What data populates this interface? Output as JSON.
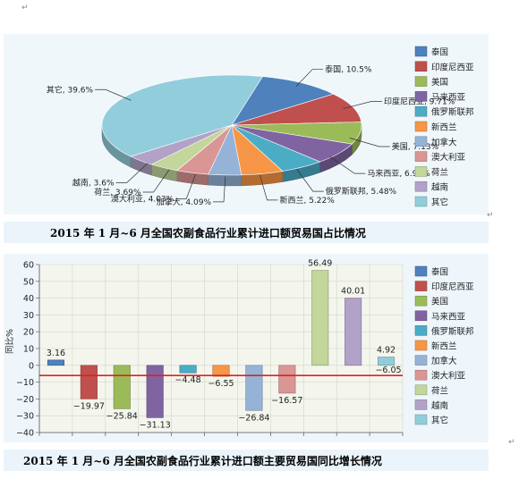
{
  "chart_data": [
    {
      "type": "pie",
      "title": "2015 年 1 月~6 月全国农副食品行业累计进口额贸易国占比情况",
      "legend_position": "right",
      "slices": [
        {
          "name": "泰国",
          "value": 10.5,
          "label": "泰国, 10.5%",
          "color": "#4f81bd"
        },
        {
          "name": "印度尼西亚",
          "value": 9.71,
          "label": "印度尼西亚, 9.71%",
          "color": "#c0504d"
        },
        {
          "name": "美国",
          "value": 7.13,
          "label": "美国, 7.13%",
          "color": "#9bbb59"
        },
        {
          "name": "马来西亚",
          "value": 6.95,
          "label": "马来西亚, 6.95%",
          "color": "#8064a2"
        },
        {
          "name": "俄罗斯联邦",
          "value": 5.48,
          "label": "俄罗斯联邦, 5.48%",
          "color": "#4bacc6"
        },
        {
          "name": "新西兰",
          "value": 5.22,
          "label": "新西兰, 5.22%",
          "color": "#f79646"
        },
        {
          "name": "加拿大",
          "value": 4.09,
          "label": "加拿大, 4.09%",
          "color": "#95b3d7"
        },
        {
          "name": "澳大利亚",
          "value": 4.03,
          "label": "澳大利亚, 4.03%",
          "color": "#d99694"
        },
        {
          "name": "荷兰",
          "value": 3.69,
          "label": "荷兰, 3.69%",
          "color": "#c3d69b"
        },
        {
          "name": "越南",
          "value": 3.6,
          "label": "越南, 3.6%",
          "color": "#b2a2c7"
        },
        {
          "name": "其它",
          "value": 39.6,
          "label": "其它, 39.6%",
          "color": "#92cddc"
        }
      ]
    },
    {
      "type": "bar",
      "title": "2015 年 1 月~6 月全国农副食品行业累计进口额主要贸易国同比增长情况",
      "ylabel": "同比%",
      "ylim": [
        -40,
        60
      ],
      "yticks": [
        -40,
        -30,
        -20,
        -10,
        0,
        10,
        20,
        30,
        40,
        50,
        60
      ],
      "grid": true,
      "legend_position": "right",
      "reference_line": {
        "y": -6.05,
        "color": "#e02020"
      },
      "categories": [
        "泰国",
        "印度尼西亚",
        "美国",
        "马来西亚",
        "俄罗斯联邦",
        "新西兰",
        "加拿大",
        "澳大利亚",
        "荷兰",
        "越南",
        "其它"
      ],
      "values": [
        3.16,
        -19.97,
        -25.84,
        -31.13,
        -4.48,
        -6.55,
        -26.84,
        -16.57,
        56.49,
        40.01,
        4.92
      ],
      "value_labels": [
        "3.16",
        "−19.97",
        "−25.84",
        "−31.13",
        "−4.48",
        "−6.55",
        "−26.84",
        "−16.57",
        "56.49",
        "40.01",
        "4.92"
      ],
      "reference_label": "−6.05",
      "colors": [
        "#4f81bd",
        "#c0504d",
        "#9bbb59",
        "#8064a2",
        "#4bacc6",
        "#f79646",
        "#95b3d7",
        "#d99694",
        "#c3d69b",
        "#b2a2c7",
        "#92cddc"
      ]
    }
  ]
}
